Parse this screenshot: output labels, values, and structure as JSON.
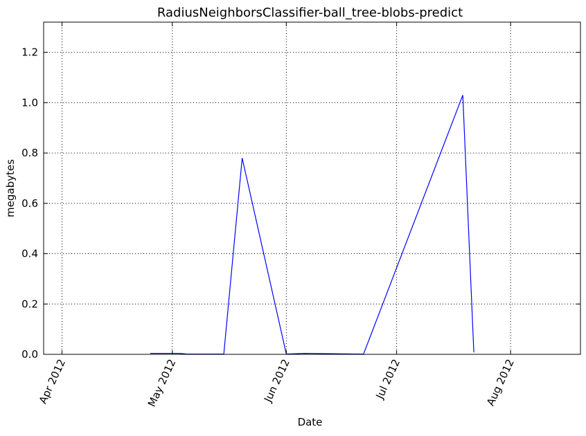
{
  "chart_data": {
    "type": "line",
    "title": "RadiusNeighborsClassifier-ball_tree-blobs-predict",
    "xlabel": "Date",
    "ylabel": "megabytes",
    "x_axis_type": "date",
    "xlim": [
      "2012-03-27",
      "2012-08-20"
    ],
    "ylim": [
      0,
      1.32
    ],
    "x_ticks": [
      {
        "label": "Apr 2012",
        "date": "2012-04-01"
      },
      {
        "label": "May 2012",
        "date": "2012-05-01"
      },
      {
        "label": "Jun 2012",
        "date": "2012-06-01"
      },
      {
        "label": "Jul 2012",
        "date": "2012-07-01"
      },
      {
        "label": "Aug 2012",
        "date": "2012-08-01"
      }
    ],
    "y_ticks": [
      {
        "label": "0.0",
        "value": 0.0
      },
      {
        "label": "0.2",
        "value": 0.2
      },
      {
        "label": "0.4",
        "value": 0.4
      },
      {
        "label": "0.6",
        "value": 0.6
      },
      {
        "label": "0.8",
        "value": 0.8
      },
      {
        "label": "1.0",
        "value": 1.0
      },
      {
        "label": "1.2",
        "value": 1.2
      }
    ],
    "grid": true,
    "series": [
      {
        "color": "#0000ff",
        "points": [
          {
            "x": "2012-04-25",
            "y": 0.004
          },
          {
            "x": "2012-05-03",
            "y": 0.004
          },
          {
            "x": "2012-05-05",
            "y": 0.001
          },
          {
            "x": "2012-05-15",
            "y": 0.001
          },
          {
            "x": "2012-05-20",
            "y": 0.78
          },
          {
            "x": "2012-06-01",
            "y": 0.001
          },
          {
            "x": "2012-06-06",
            "y": 0.004
          },
          {
            "x": "2012-06-22",
            "y": 0.001
          },
          {
            "x": "2012-07-19",
            "y": 1.03
          },
          {
            "x": "2012-07-22",
            "y": 0.008
          }
        ]
      }
    ]
  }
}
